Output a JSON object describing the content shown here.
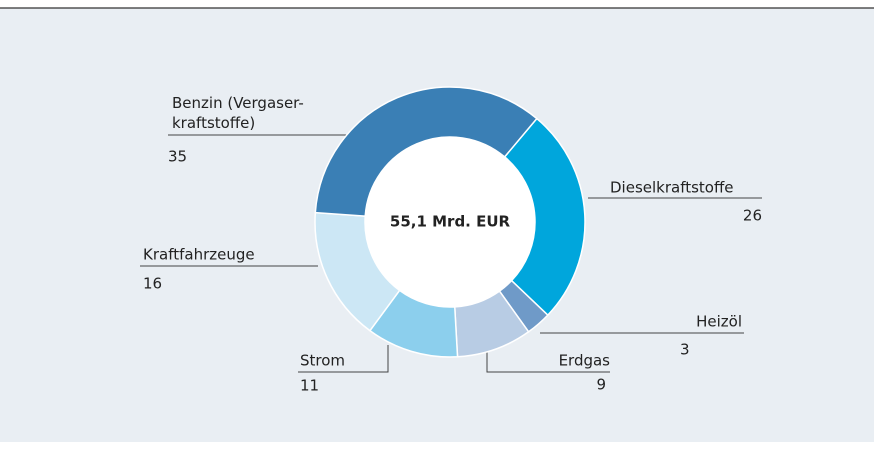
{
  "chart_data": {
    "type": "donut",
    "center_label": "55,1 Mrd. EUR",
    "categories": [
      "Dieselkraftstoffe",
      "Heizöl",
      "Erdgas",
      "Strom",
      "Kraftfahrzeuge",
      "Benzin (Vergaser-\nkraftstoffe)"
    ],
    "values": [
      26,
      3,
      9,
      11,
      16,
      35
    ],
    "colors": [
      "#00a6dc",
      "#6f9ac8",
      "#b8cce4",
      "#8ccfed",
      "#cce7f5",
      "#3a7fb5"
    ]
  }
}
